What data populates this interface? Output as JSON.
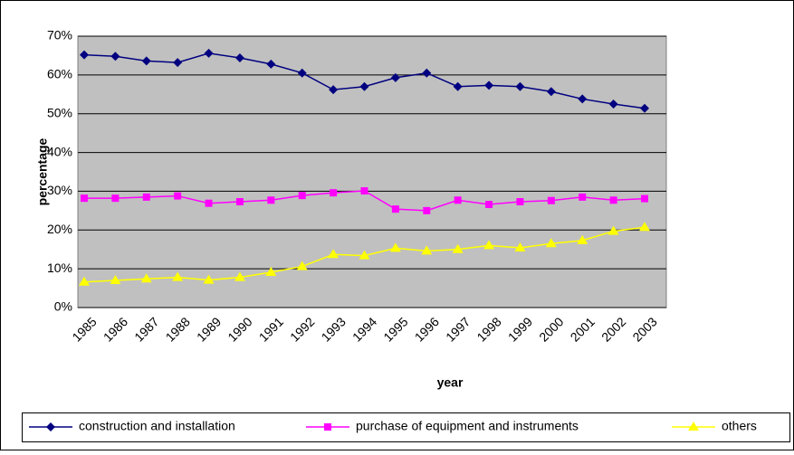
{
  "chart_data": {
    "type": "line",
    "x_label": "year",
    "y_label": "percentage",
    "categories": [
      "1985",
      "1986",
      "1987",
      "1988",
      "1989",
      "1990",
      "1991",
      "1992",
      "1993",
      "1994",
      "1995",
      "1996",
      "1997",
      "1998",
      "1999",
      "2000",
      "2001",
      "2002",
      "2003"
    ],
    "series": [
      {
        "name": "construction and installation",
        "color": "#000080",
        "marker": "diamond",
        "values": [
          65.2,
          64.8,
          63.6,
          63.2,
          65.6,
          64.4,
          62.8,
          60.5,
          56.2,
          57.0,
          59.3,
          60.5,
          57.0,
          57.3,
          57.0,
          55.7,
          53.8,
          52.5,
          51.4
        ]
      },
      {
        "name": "purchase of equipment and instruments",
        "color": "#ff00ff",
        "marker": "square",
        "values": [
          28.2,
          28.2,
          28.5,
          28.8,
          26.9,
          27.3,
          27.7,
          28.9,
          29.6,
          30.1,
          25.4,
          25.0,
          27.7,
          26.6,
          27.3,
          27.6,
          28.5,
          27.7,
          28.1
        ]
      },
      {
        "name": "others",
        "color": "#ffff00",
        "marker": "triangle",
        "values": [
          6.6,
          7.0,
          7.4,
          7.8,
          7.1,
          7.8,
          9.1,
          10.6,
          13.7,
          13.4,
          15.3,
          14.6,
          15.0,
          16.0,
          15.4,
          16.5,
          17.3,
          19.7,
          20.7
        ]
      }
    ],
    "ylim": [
      0,
      70
    ],
    "yticks": [
      {
        "value": 0,
        "label": "0%"
      },
      {
        "value": 10,
        "label": "10%"
      },
      {
        "value": 20,
        "label": "20%"
      },
      {
        "value": 30,
        "label": "30%"
      },
      {
        "value": 40,
        "label": "40%"
      },
      {
        "value": 50,
        "label": "50%"
      },
      {
        "value": 60,
        "label": "60%"
      },
      {
        "value": 70,
        "label": "70%"
      }
    ],
    "grid": true,
    "legend": "bottom",
    "plot_background": "#c0c0c0"
  }
}
